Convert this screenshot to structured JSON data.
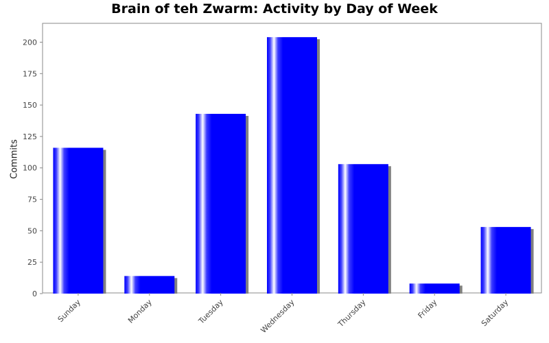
{
  "chart_data": {
    "type": "bar",
    "title": "Brain of teh Zwarm: Activity by Day of Week",
    "xlabel": "",
    "ylabel": "Commits",
    "categories": [
      "Sunday",
      "Monday",
      "Tuesday",
      "Wednesday",
      "Thursday",
      "Friday",
      "Saturday"
    ],
    "values": [
      116,
      14,
      143,
      204,
      103,
      8,
      53
    ],
    "ylim": [
      0,
      215
    ],
    "yticks": [
      0,
      25,
      50,
      75,
      100,
      125,
      150,
      175,
      200
    ],
    "grid": false,
    "legend": "none",
    "colors": {
      "bar": "#0000ff",
      "bar_highlight": "#ffffff",
      "shadow": "#808080",
      "axis": "#888888"
    }
  }
}
